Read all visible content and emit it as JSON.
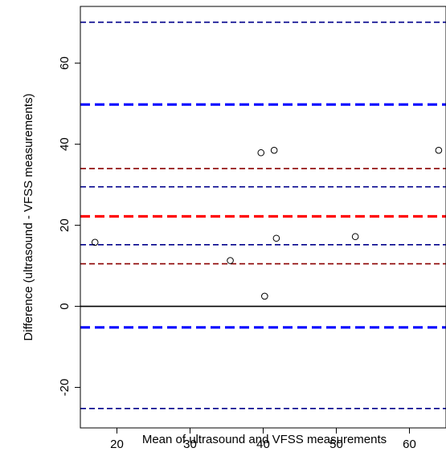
{
  "chart_data": {
    "type": "scatter",
    "title": "",
    "xlabel": "Mean of ultrasound and VFSS measurements",
    "ylabel": "Difference (ultrasound - VFSS measurements)",
    "xlim": [
      15,
      65
    ],
    "ylim": [
      -30,
      74
    ],
    "x_ticks": [
      20,
      30,
      40,
      50,
      60
    ],
    "y_ticks": [
      -20,
      0,
      20,
      40,
      60
    ],
    "grid": false,
    "points": [
      {
        "x": 17.0,
        "y": 15.8
      },
      {
        "x": 35.5,
        "y": 11.3
      },
      {
        "x": 39.7,
        "y": 37.9
      },
      {
        "x": 40.2,
        "y": 2.5
      },
      {
        "x": 41.5,
        "y": 38.5
      },
      {
        "x": 41.8,
        "y": 16.8
      },
      {
        "x": 52.6,
        "y": 17.2
      },
      {
        "x": 64.0,
        "y": 38.5
      }
    ],
    "reference_lines": [
      {
        "y": 0,
        "color": "#000000",
        "style": "solid",
        "weight": "thin"
      },
      {
        "y": 22.2,
        "color": "#ff0000",
        "style": "dashed",
        "weight": "thick"
      },
      {
        "y": 34.0,
        "color": "#8b0000",
        "style": "dashed",
        "weight": "thin"
      },
      {
        "y": 10.5,
        "color": "#8b0000",
        "style": "dashed",
        "weight": "thin"
      },
      {
        "y": 49.8,
        "color": "#0000ff",
        "style": "dashed",
        "weight": "thick"
      },
      {
        "y": -5.2,
        "color": "#0000ff",
        "style": "dashed",
        "weight": "thick"
      },
      {
        "y": 70.1,
        "color": "#00008b",
        "style": "dashed",
        "weight": "thin"
      },
      {
        "y": 29.5,
        "color": "#00008b",
        "style": "dashed",
        "weight": "thin"
      },
      {
        "y": 15.2,
        "color": "#00008b",
        "style": "dashed",
        "weight": "thin"
      },
      {
        "y": -25.2,
        "color": "#00008b",
        "style": "dashed",
        "weight": "thin"
      }
    ]
  }
}
